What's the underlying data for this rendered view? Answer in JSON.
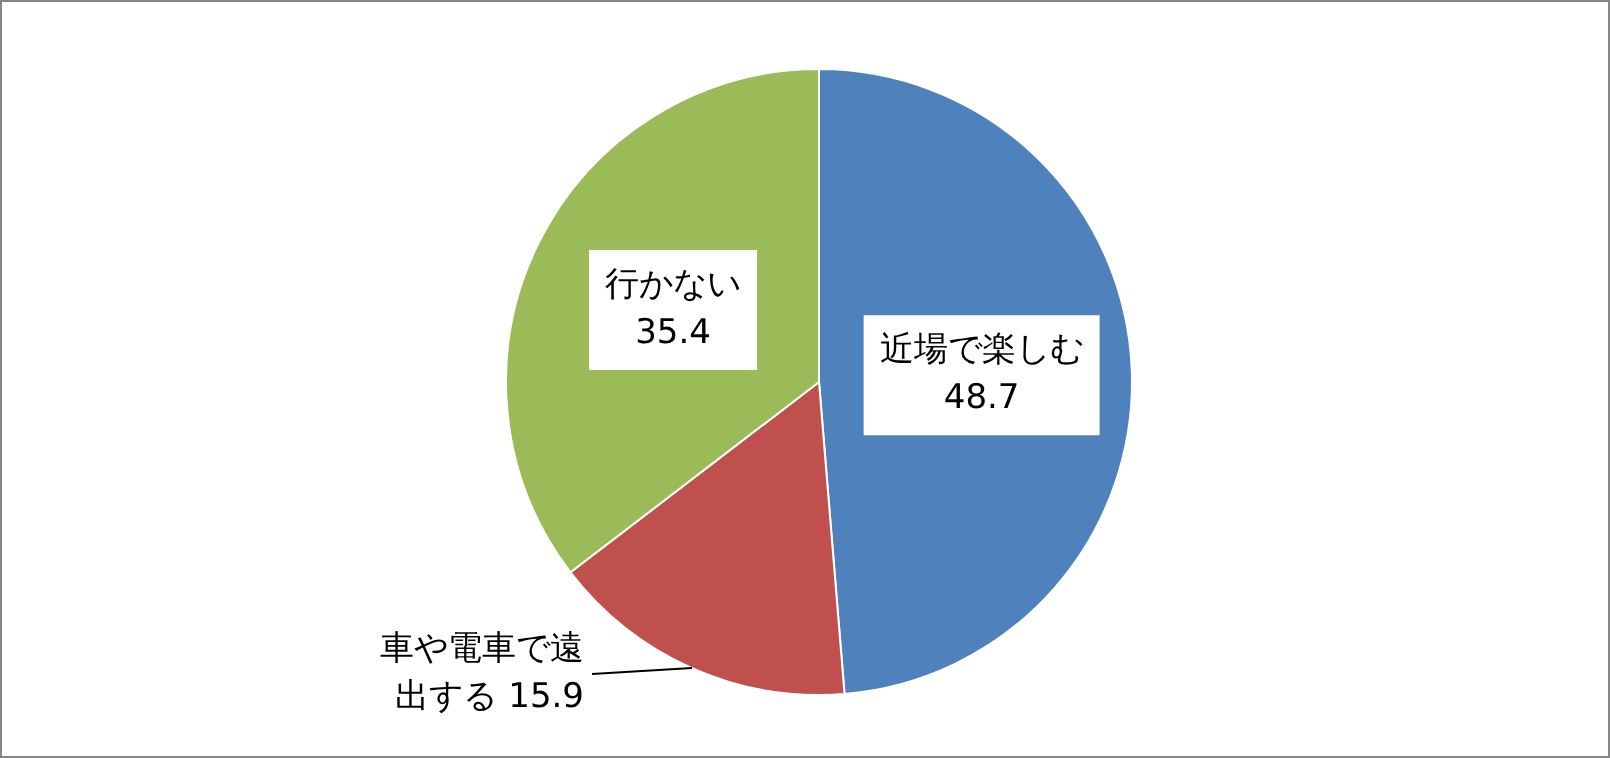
{
  "chart_data": {
    "type": "pie",
    "categories": [
      "近場で楽しむ",
      "車や電車で遠出する",
      "行かない"
    ],
    "values": [
      48.7,
      15.9,
      35.4
    ],
    "colors": [
      "#4f81bd",
      "#c0504d",
      "#9bbb59"
    ],
    "data_labels": true,
    "legend": false
  }
}
